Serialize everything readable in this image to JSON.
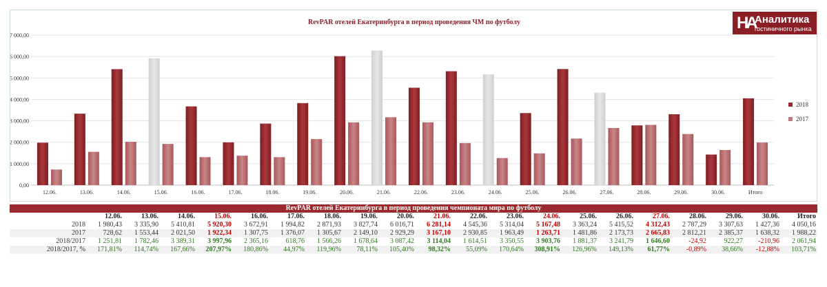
{
  "chart_data": {
    "type": "bar",
    "title": "RevPAR отелей Екатеринбурга в период проведения ЧМ по футболу",
    "categories": [
      "12.06.",
      "13.06.",
      "14.06.",
      "15.06.",
      "16.06.",
      "17.06.",
      "18.06.",
      "19.06.",
      "20.06.",
      "21.06.",
      "22.06.",
      "23.06.",
      "24.06.",
      "25.06.",
      "26.06.",
      "27.06.",
      "28.06.",
      "29.06.",
      "30.06.",
      "Итого"
    ],
    "series": [
      {
        "name": "2018",
        "color": "#9b2a2f",
        "values": [
          1980.43,
          3335.9,
          5410.81,
          5920.3,
          3672.91,
          1994.82,
          2871.93,
          3827.74,
          6016.71,
          6281.14,
          4545.36,
          5314.04,
          5167.48,
          3363.24,
          5415.52,
          4312.43,
          2787.29,
          3307.63,
          1427.36,
          4050.16
        ]
      },
      {
        "name": "2017",
        "color": "#c07a7c",
        "values": [
          728.62,
          1553.44,
          2021.5,
          1922.34,
          1307.75,
          1376.07,
          1305.67,
          2149.1,
          2929.29,
          3167.1,
          2930.85,
          1963.49,
          1263.71,
          1481.86,
          2173.73,
          2665.83,
          2812.21,
          2385.37,
          1638.32,
          1988.22
        ]
      }
    ],
    "highlight_categories": [
      "15.06.",
      "21.06.",
      "24.06.",
      "27.06."
    ],
    "highlight_color": "#d9d9d9",
    "ylim": [
      0,
      7000
    ],
    "yticks": [
      "0,00",
      "1 000,00",
      "2 000,00",
      "3 000,00",
      "4 000,00",
      "5 000,00",
      "6 000,00",
      "7 000,00"
    ],
    "legend_position": "right",
    "grid": true,
    "xlabel": "",
    "ylabel": ""
  },
  "logo": {
    "mark": "HA",
    "title": "Аналитика",
    "subtitle": "гостиничного рынка"
  },
  "table": {
    "title": "RevPAR отелей Екатеринбурга в период проведения чемпионата мира по футболу",
    "headers": [
      "12.06.",
      "13.06.",
      "14.06.",
      "15.06.",
      "16.06.",
      "17.06.",
      "18.06.",
      "19.06.",
      "20.06.",
      "21.06.",
      "22.06.",
      "23.06.",
      "24.06.",
      "25.06.",
      "26.06.",
      "27.06.",
      "28.06.",
      "29.06.",
      "30.06.",
      "Итого"
    ],
    "rows": [
      {
        "label": "2018",
        "values": [
          "1 980,43",
          "3 335,90",
          "5 410,81",
          "5 920,30",
          "3 672,91",
          "1 994,82",
          "2 871,93",
          "3 827,74",
          "6 016,71",
          "6 281,14",
          "4 545,36",
          "5 314,04",
          "5 167,48",
          "3 363,24",
          "5 415,52",
          "4 312,43",
          "2 787,29",
          "3 307,63",
          "1 427,36",
          "4 050,16"
        ]
      },
      {
        "label": "2017",
        "values": [
          "728,62",
          "1 553,44",
          "2 021,50",
          "1 922,34",
          "1 307,75",
          "1 376,07",
          "1 305,67",
          "2 149,10",
          "2 929,29",
          "3 167,10",
          "2 930,85",
          "1 963,49",
          "1 263,71",
          "1 481,86",
          "2 173,73",
          "2 665,83",
          "2 812,21",
          "2 385,37",
          "1 638,32",
          "1 988,22"
        ]
      },
      {
        "label": "2018/2017",
        "values": [
          "1 251,81",
          "1 782,46",
          "3 389,31",
          "3 997,96",
          "2 365,16",
          "618,76",
          "1 566,26",
          "1 678,64",
          "3 087,42",
          "3 114,04",
          "1 614,51",
          "3 350,55",
          "3 903,76",
          "1 881,37",
          "3 241,79",
          "1 646,60",
          "-24,92",
          "922,27",
          "-210,96",
          "2 061,94"
        ]
      },
      {
        "label": "2018/2017, %",
        "values": [
          "171,81%",
          "114,74%",
          "167,66%",
          "207,97%",
          "180,86%",
          "44,97%",
          "119,96%",
          "78,11%",
          "105,40%",
          "98,32%",
          "55,09%",
          "170,64%",
          "308,91%",
          "126,96%",
          "149,13%",
          "61,77%",
          "-0,89%",
          "38,66%",
          "-12,88%",
          "103,71%"
        ]
      }
    ]
  }
}
